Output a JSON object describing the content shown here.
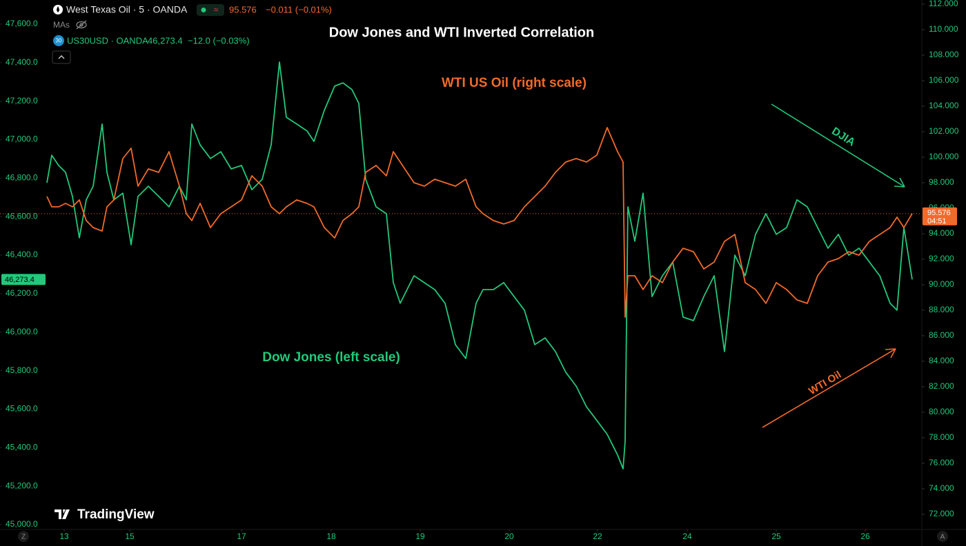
{
  "chart_data": {
    "type": "line",
    "title": "Dow Jones and WTI Inverted Correlation",
    "annotations": [
      "WTI US Oil (right scale)",
      "Dow Jones (left scale)",
      "DJIA",
      "WTI Oil"
    ],
    "x": [
      6.8,
      7.5,
      8.5,
      9.5,
      10.5,
      11.5,
      12.5,
      13.5,
      14.8,
      15.5,
      16.5,
      17.8,
      19,
      20,
      21.5,
      23,
      24.5,
      26,
      27,
      27.8,
      29,
      30.5,
      32,
      33.5,
      35,
      36.5,
      38,
      39.3,
      40.5,
      41.5,
      43,
      44.5,
      45.5,
      47,
      48.5,
      49.7,
      51,
      52,
      53,
      54.5,
      56,
      57,
      58,
      60,
      61.5,
      63,
      64.5,
      66,
      67.5,
      69,
      70,
      71.5,
      73,
      74.5,
      76,
      77.5,
      79,
      80.5,
      82,
      83.5,
      85,
      86.5,
      88,
      89.5,
      90.3,
      90.6,
      91,
      92,
      93.2,
      94.5,
      96,
      97.5,
      99,
      100.5,
      102,
      103.5,
      105,
      106.5,
      108,
      109.5,
      111,
      112.5,
      114,
      115.5,
      117,
      118.5,
      120,
      121.5,
      123,
      124.5,
      126,
      127.5,
      129,
      130,
      131,
      132.2
    ],
    "xlim": [
      0,
      133.5
    ],
    "xticks": [
      {
        "value": 9.3,
        "label": "13"
      },
      {
        "value": 18.8,
        "label": "15"
      },
      {
        "value": 35,
        "label": "17"
      },
      {
        "value": 48,
        "label": "18"
      },
      {
        "value": 60.9,
        "label": "19"
      },
      {
        "value": 73.8,
        "label": "20"
      },
      {
        "value": 86.6,
        "label": "22"
      },
      {
        "value": 99.6,
        "label": "24"
      },
      {
        "value": 112.5,
        "label": "25"
      },
      {
        "value": 125.4,
        "label": "26"
      }
    ],
    "ylim": [
      45000,
      47600
    ],
    "yticks": [
      {
        "value": 45000,
        "label": "45,000.0"
      },
      {
        "value": 45200,
        "label": "45,200.0"
      },
      {
        "value": 45400,
        "label": "45,400.0"
      },
      {
        "value": 45600,
        "label": "45,600.0"
      },
      {
        "value": 45800,
        "label": "45,800.0"
      },
      {
        "value": 46000,
        "label": "46,000.0"
      },
      {
        "value": 46200,
        "label": "46,200.0"
      },
      {
        "value": 46400,
        "label": "46,400.0"
      },
      {
        "value": 46600,
        "label": "46,600.0"
      },
      {
        "value": 46800,
        "label": "46,800.0"
      },
      {
        "value": 47000,
        "label": "47,000.0"
      },
      {
        "value": 47200,
        "label": "47,200.0"
      },
      {
        "value": 47400,
        "label": "47,400.0"
      },
      {
        "value": 47600,
        "label": "47,600.0"
      }
    ],
    "y2lim": [
      72,
      112
    ],
    "y2ticks": [
      {
        "value": 72,
        "label": "72.000"
      },
      {
        "value": 74,
        "label": "74.000"
      },
      {
        "value": 76,
        "label": "76.000"
      },
      {
        "value": 78,
        "label": "78.000"
      },
      {
        "value": 80,
        "label": "80.000"
      },
      {
        "value": 82,
        "label": "82.000"
      },
      {
        "value": 84,
        "label": "84.000"
      },
      {
        "value": 86,
        "label": "86.000"
      },
      {
        "value": 88,
        "label": "88.000"
      },
      {
        "value": 90,
        "label": "90.000"
      },
      {
        "value": 92,
        "label": "92.000"
      },
      {
        "value": 94,
        "label": "94.000"
      },
      {
        "value": 96,
        "label": "96.000"
      },
      {
        "value": 98,
        "label": "98.000"
      },
      {
        "value": 100,
        "label": "100.000"
      },
      {
        "value": 102,
        "label": "102.000"
      },
      {
        "value": 104,
        "label": "104.000"
      },
      {
        "value": 106,
        "label": "106.000"
      },
      {
        "value": 108,
        "label": "108.000"
      },
      {
        "value": 110,
        "label": "110.000"
      },
      {
        "value": 112,
        "label": "112.000"
      }
    ],
    "grid": false,
    "series": [
      {
        "name": "US30USD · OANDA",
        "color": "#22c97b",
        "axis": "y",
        "values": [
          46776,
          46919,
          46866,
          46830,
          46705,
          46490,
          46687,
          46758,
          47081,
          46830,
          46687,
          46722,
          46454,
          46705,
          46758,
          46705,
          46651,
          46758,
          46687,
          47081,
          46973,
          46902,
          46937,
          46848,
          46866,
          46740,
          46794,
          46973,
          47403,
          47116,
          47081,
          47045,
          46991,
          47152,
          47278,
          47295,
          47260,
          47188,
          46794,
          46651,
          46615,
          46257,
          46150,
          46293,
          46257,
          46221,
          46150,
          45935,
          45863,
          46150,
          46221,
          46221,
          46257,
          46185,
          46114,
          45935,
          45970,
          45899,
          45791,
          45720,
          45612,
          45541,
          45469,
          45362,
          45290,
          45433,
          46651,
          46472,
          46722,
          46185,
          46293,
          46364,
          46078,
          46060,
          46185,
          46293,
          45899,
          46400,
          46293,
          46508,
          46615,
          46508,
          46543,
          46687,
          46651,
          46543,
          46436,
          46508,
          46400,
          46436,
          46364,
          46293,
          46150,
          46114,
          46543,
          46273.4
        ]
      },
      {
        "name": "West Texas Oil · 5 · OANDA",
        "color": "#f26a2a",
        "axis": "y2",
        "values": [
          96.92,
          96.11,
          96.11,
          96.38,
          96.11,
          96.65,
          95.03,
          94.48,
          94.21,
          96.11,
          96.65,
          99.89,
          100.7,
          97.73,
          99.08,
          98.81,
          100.43,
          97.73,
          95.57,
          95.03,
          96.38,
          94.48,
          95.57,
          96.11,
          96.65,
          98.54,
          97.73,
          96.11,
          95.57,
          96.11,
          96.65,
          96.38,
          96.11,
          94.48,
          93.67,
          95.03,
          95.57,
          96.11,
          98.81,
          99.35,
          98.54,
          100.43,
          99.62,
          98,
          97.73,
          98.27,
          98,
          97.73,
          98.27,
          96.11,
          95.57,
          95.03,
          94.76,
          95.03,
          96.11,
          96.92,
          97.73,
          98.81,
          99.62,
          99.89,
          99.62,
          100.16,
          102.32,
          100.43,
          99.62,
          87.46,
          90.7,
          90.7,
          89.62,
          90.7,
          90.16,
          91.78,
          92.86,
          92.59,
          91.24,
          91.78,
          93.4,
          93.94,
          90.16,
          89.62,
          88.54,
          90.16,
          89.62,
          88.81,
          88.54,
          90.7,
          91.78,
          92.05,
          92.59,
          92.32,
          93.4,
          93.94,
          94.48,
          95.3,
          94.48,
          95.576
        ]
      }
    ]
  },
  "ui": {
    "oil_price": "95.576",
    "oil_change": "−0.011 (−0.01%)",
    "mas": "MAs",
    "badge": "30",
    "dow_price": "46,273.4",
    "dow_change": "−12.0 (−0.03%)",
    "oil_tag_time": "04:51",
    "logo": "TradingView",
    "corner_left": "Z",
    "corner_right": "A"
  }
}
